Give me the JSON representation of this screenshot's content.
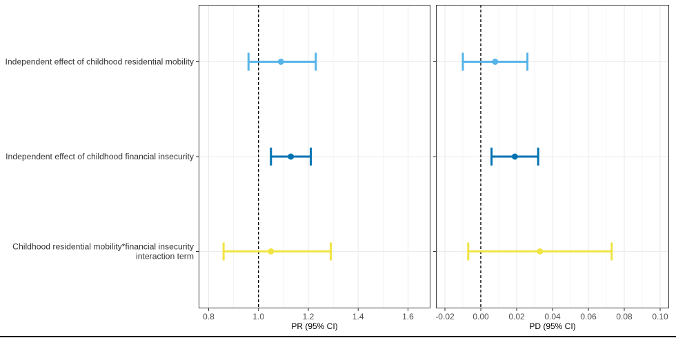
{
  "chart_data": {
    "type": "scatter",
    "grid": true,
    "categories": [
      [
        "Independent effect of childhood residential mobility"
      ],
      [
        "Independent effect of childhood financial insecurity"
      ],
      [
        "Childhood residential mobility*financial insecurity",
        "interaction term"
      ]
    ],
    "colors": [
      "#56B4E9",
      "#0072B2",
      "#F0E442"
    ],
    "facets": [
      {
        "xlabel": "PR (95% CI)",
        "xlim": [
          0.76,
          1.69
        ],
        "ticks": [
          0.8,
          1.0,
          1.2,
          1.4,
          1.6
        ],
        "tick_labels": [
          "0.8",
          "1.0",
          "1.2",
          "1.4",
          "1.6"
        ],
        "reference_line": 1.0,
        "estimate": [
          1.09,
          1.13,
          1.05
        ],
        "lower": [
          0.96,
          1.05,
          0.86
        ],
        "upper": [
          1.23,
          1.21,
          1.29
        ]
      },
      {
        "xlabel": "PD (95% CI)",
        "xlim": [
          -0.025,
          0.105
        ],
        "ticks": [
          -0.02,
          0.0,
          0.02,
          0.04,
          0.06,
          0.08,
          0.1
        ],
        "tick_labels": [
          "-0.02",
          "0.00",
          "0.02",
          "0.04",
          "0.06",
          "0.08",
          "0.10"
        ],
        "reference_line": 0.0,
        "estimate": [
          0.008,
          0.019,
          0.033
        ],
        "lower": [
          -0.01,
          0.006,
          -0.007
        ],
        "upper": [
          0.026,
          0.032,
          0.073
        ]
      }
    ]
  }
}
